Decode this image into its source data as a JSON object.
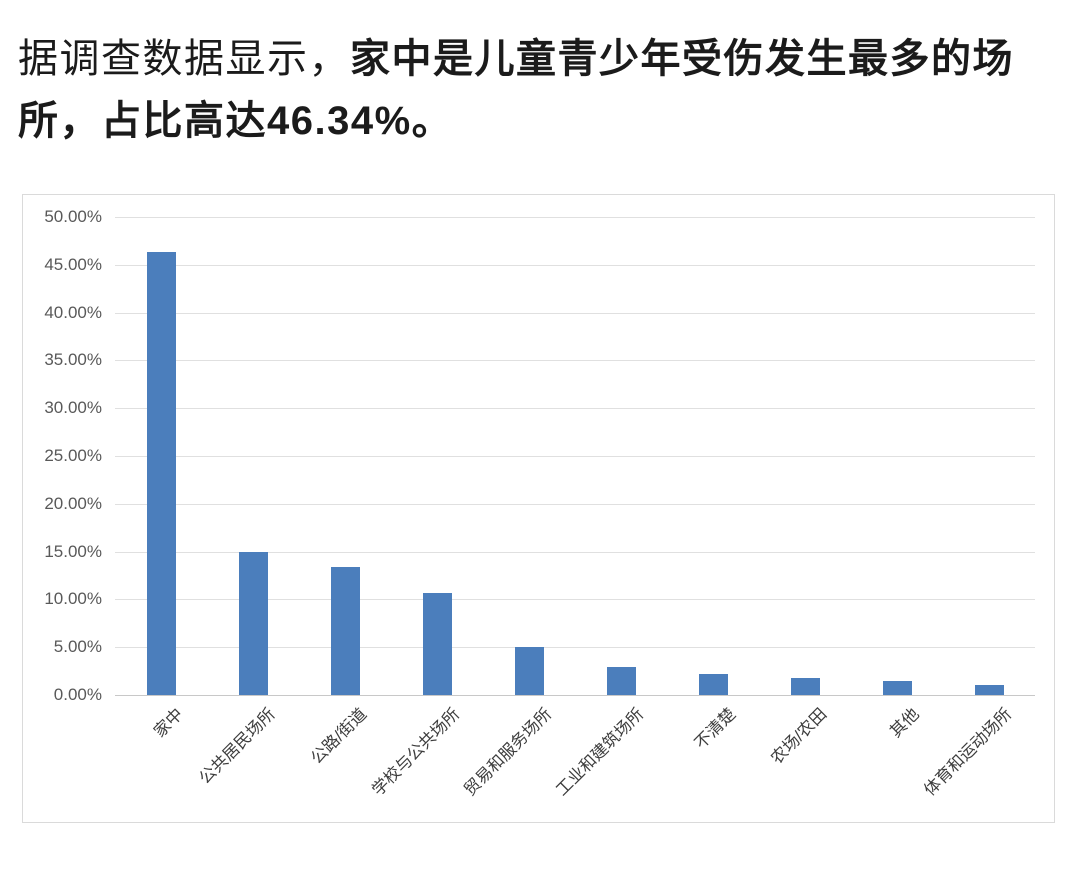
{
  "title": {
    "prefix": "据调查数据显示，",
    "emphasis": "家中是儿童青少年受伤发生最多的场所，占比高达46.34%。"
  },
  "chart_data": {
    "type": "bar",
    "categories": [
      "家中",
      "公共居民场所",
      "公路/街道",
      "学校与公共场所",
      "贸易和服务场所",
      "工业和建筑场所",
      "不清楚",
      "农场/农田",
      "其他",
      "体育和运动场所"
    ],
    "values": [
      46.34,
      15.0,
      13.35,
      10.7,
      5.0,
      2.9,
      2.2,
      1.8,
      1.5,
      1.05
    ],
    "title": "",
    "xlabel": "",
    "ylabel": "",
    "ylim": [
      0,
      50
    ],
    "ytick_step": 5,
    "ytick_labels": [
      "0.00%",
      "5.00%",
      "10.00%",
      "15.00%",
      "20.00%",
      "25.00%",
      "30.00%",
      "35.00%",
      "40.00%",
      "45.00%",
      "50.00%"
    ],
    "grid": true,
    "legend": false,
    "bar_color": "#4b7ebc",
    "gridline_color": "#e0e0e0",
    "axis_line_color": "#c8c8c8",
    "ytick_color": "#595959",
    "xtick_color": "#3d3d3d",
    "frame_border_color": "#dadada"
  }
}
